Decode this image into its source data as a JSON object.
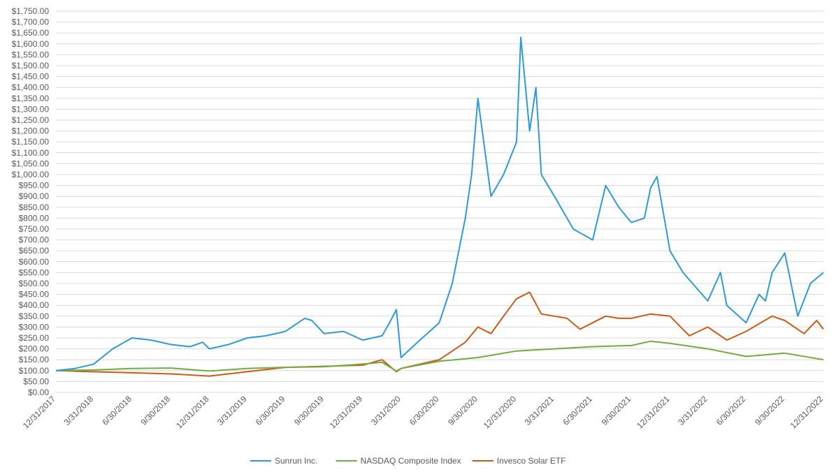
{
  "chart_data": {
    "type": "line",
    "title": "",
    "xlabel": "",
    "ylabel": "",
    "ylim": [
      0,
      1750
    ],
    "y_ticks": [
      "$0.00",
      "$50.00",
      "$100.00",
      "$150.00",
      "$200.00",
      "$250.00",
      "$300.00",
      "$350.00",
      "$400.00",
      "$450.00",
      "$500.00",
      "$550.00",
      "$600.00",
      "$650.00",
      "$700.00",
      "$750.00",
      "$800.00",
      "$850.00",
      "$900.00",
      "$950.00",
      "$1,000.00",
      "$1,050.00",
      "$1,100.00",
      "$1,150.00",
      "$1,200.00",
      "$1,250.00",
      "$1,300.00",
      "$1,350.00",
      "$1,400.00",
      "$1,450.00",
      "$1,500.00",
      "$1,550.00",
      "$1,600.00",
      "$1,650.00",
      "$1,700.00",
      "$1,750.00"
    ],
    "x_ticks": [
      "12/31/2017",
      "3/31/2018",
      "6/30/2018",
      "9/30/2018",
      "12/31/2018",
      "3/31/2019",
      "6/30/2019",
      "9/30/2019",
      "12/31/2019",
      "3/31/2020",
      "6/30/2020",
      "9/30/2020",
      "12/31/2020",
      "3/31/2021",
      "6/30/2021",
      "9/30/2021",
      "12/31/2021",
      "3/31/2022",
      "6/30/2022",
      "9/30/2022",
      "12/31/2022"
    ],
    "grid": true,
    "legend_position": "bottom",
    "series": [
      {
        "name": "Sunrun Inc.",
        "color": "#2E9BD6",
        "x": [
          "12/31/2017",
          "2/15/2018",
          "3/31/2018",
          "5/15/2018",
          "6/30/2018",
          "8/15/2018",
          "9/30/2018",
          "11/15/2018",
          "12/15/2018",
          "12/31/2018",
          "2/15/2019",
          "3/31/2019",
          "5/15/2019",
          "6/30/2019",
          "8/15/2019",
          "9/1/2019",
          "9/30/2019",
          "11/15/2019",
          "12/31/2019",
          "2/15/2020",
          "3/1/2020",
          "3/20/2020",
          "3/31/2020",
          "5/15/2020",
          "6/30/2020",
          "7/31/2020",
          "8/31/2020",
          "9/15/2020",
          "9/30/2020",
          "10/31/2020",
          "11/30/2020",
          "12/31/2020",
          "1/10/2021",
          "1/31/2021",
          "2/15/2021",
          "2/28/2021",
          "3/31/2021",
          "5/15/2021",
          "6/30/2021",
          "7/31/2021",
          "8/31/2021",
          "9/30/2021",
          "10/31/2021",
          "11/15/2021",
          "11/30/2021",
          "12/31/2021",
          "1/31/2022",
          "3/31/2022",
          "4/30/2022",
          "5/15/2022",
          "6/30/2022",
          "7/31/2022",
          "8/15/2022",
          "8/31/2022",
          "9/30/2022",
          "10/31/2022",
          "11/30/2022",
          "12/31/2022"
        ],
        "values": [
          100,
          110,
          130,
          200,
          250,
          240,
          220,
          210,
          230,
          200,
          220,
          250,
          260,
          280,
          340,
          330,
          270,
          280,
          240,
          260,
          310,
          380,
          160,
          240,
          320,
          500,
          800,
          1000,
          1350,
          900,
          1000,
          1150,
          1630,
          1200,
          1400,
          1000,
          900,
          750,
          700,
          950,
          850,
          780,
          800,
          940,
          990,
          650,
          550,
          420,
          550,
          400,
          320,
          450,
          420,
          550,
          640,
          350,
          500,
          550
        ]
      },
      {
        "name": "NASDAQ Composite Index",
        "color": "#6FAD3F",
        "x": [
          "12/31/2017",
          "3/31/2018",
          "6/30/2018",
          "9/30/2018",
          "12/31/2018",
          "3/31/2019",
          "6/30/2019",
          "9/30/2019",
          "12/31/2019",
          "2/15/2020",
          "3/20/2020",
          "3/31/2020",
          "6/30/2020",
          "9/30/2020",
          "12/31/2020",
          "3/31/2021",
          "6/30/2021",
          "9/30/2021",
          "11/15/2021",
          "12/31/2021",
          "3/31/2022",
          "6/30/2022",
          "9/30/2022",
          "12/31/2022"
        ],
        "values": [
          100,
          103,
          110,
          112,
          98,
          110,
          115,
          118,
          130,
          138,
          98,
          110,
          143,
          160,
          190,
          200,
          210,
          215,
          235,
          225,
          200,
          165,
          180,
          150
        ]
      },
      {
        "name": "Invesco Solar ETF",
        "color": "#CF5A16",
        "x": [
          "12/31/2017",
          "3/31/2018",
          "6/30/2018",
          "9/30/2018",
          "12/31/2018",
          "3/31/2019",
          "6/30/2019",
          "9/30/2019",
          "12/31/2019",
          "2/15/2020",
          "3/20/2020",
          "3/31/2020",
          "6/30/2020",
          "8/31/2020",
          "9/30/2020",
          "10/31/2020",
          "11/30/2020",
          "12/31/2020",
          "1/31/2021",
          "2/28/2021",
          "3/31/2021",
          "4/30/2021",
          "5/31/2021",
          "6/30/2021",
          "7/31/2021",
          "8/31/2021",
          "9/30/2021",
          "11/15/2021",
          "12/31/2021",
          "2/15/2022",
          "3/31/2022",
          "5/15/2022",
          "6/30/2022",
          "8/31/2022",
          "9/30/2022",
          "11/15/2022",
          "12/15/2022",
          "12/31/2022"
        ],
        "values": [
          100,
          95,
          90,
          85,
          75,
          95,
          115,
          120,
          125,
          150,
          95,
          110,
          150,
          230,
          300,
          270,
          350,
          430,
          460,
          360,
          350,
          340,
          290,
          320,
          350,
          340,
          340,
          360,
          350,
          260,
          300,
          240,
          280,
          350,
          330,
          270,
          330,
          290
        ]
      }
    ]
  }
}
